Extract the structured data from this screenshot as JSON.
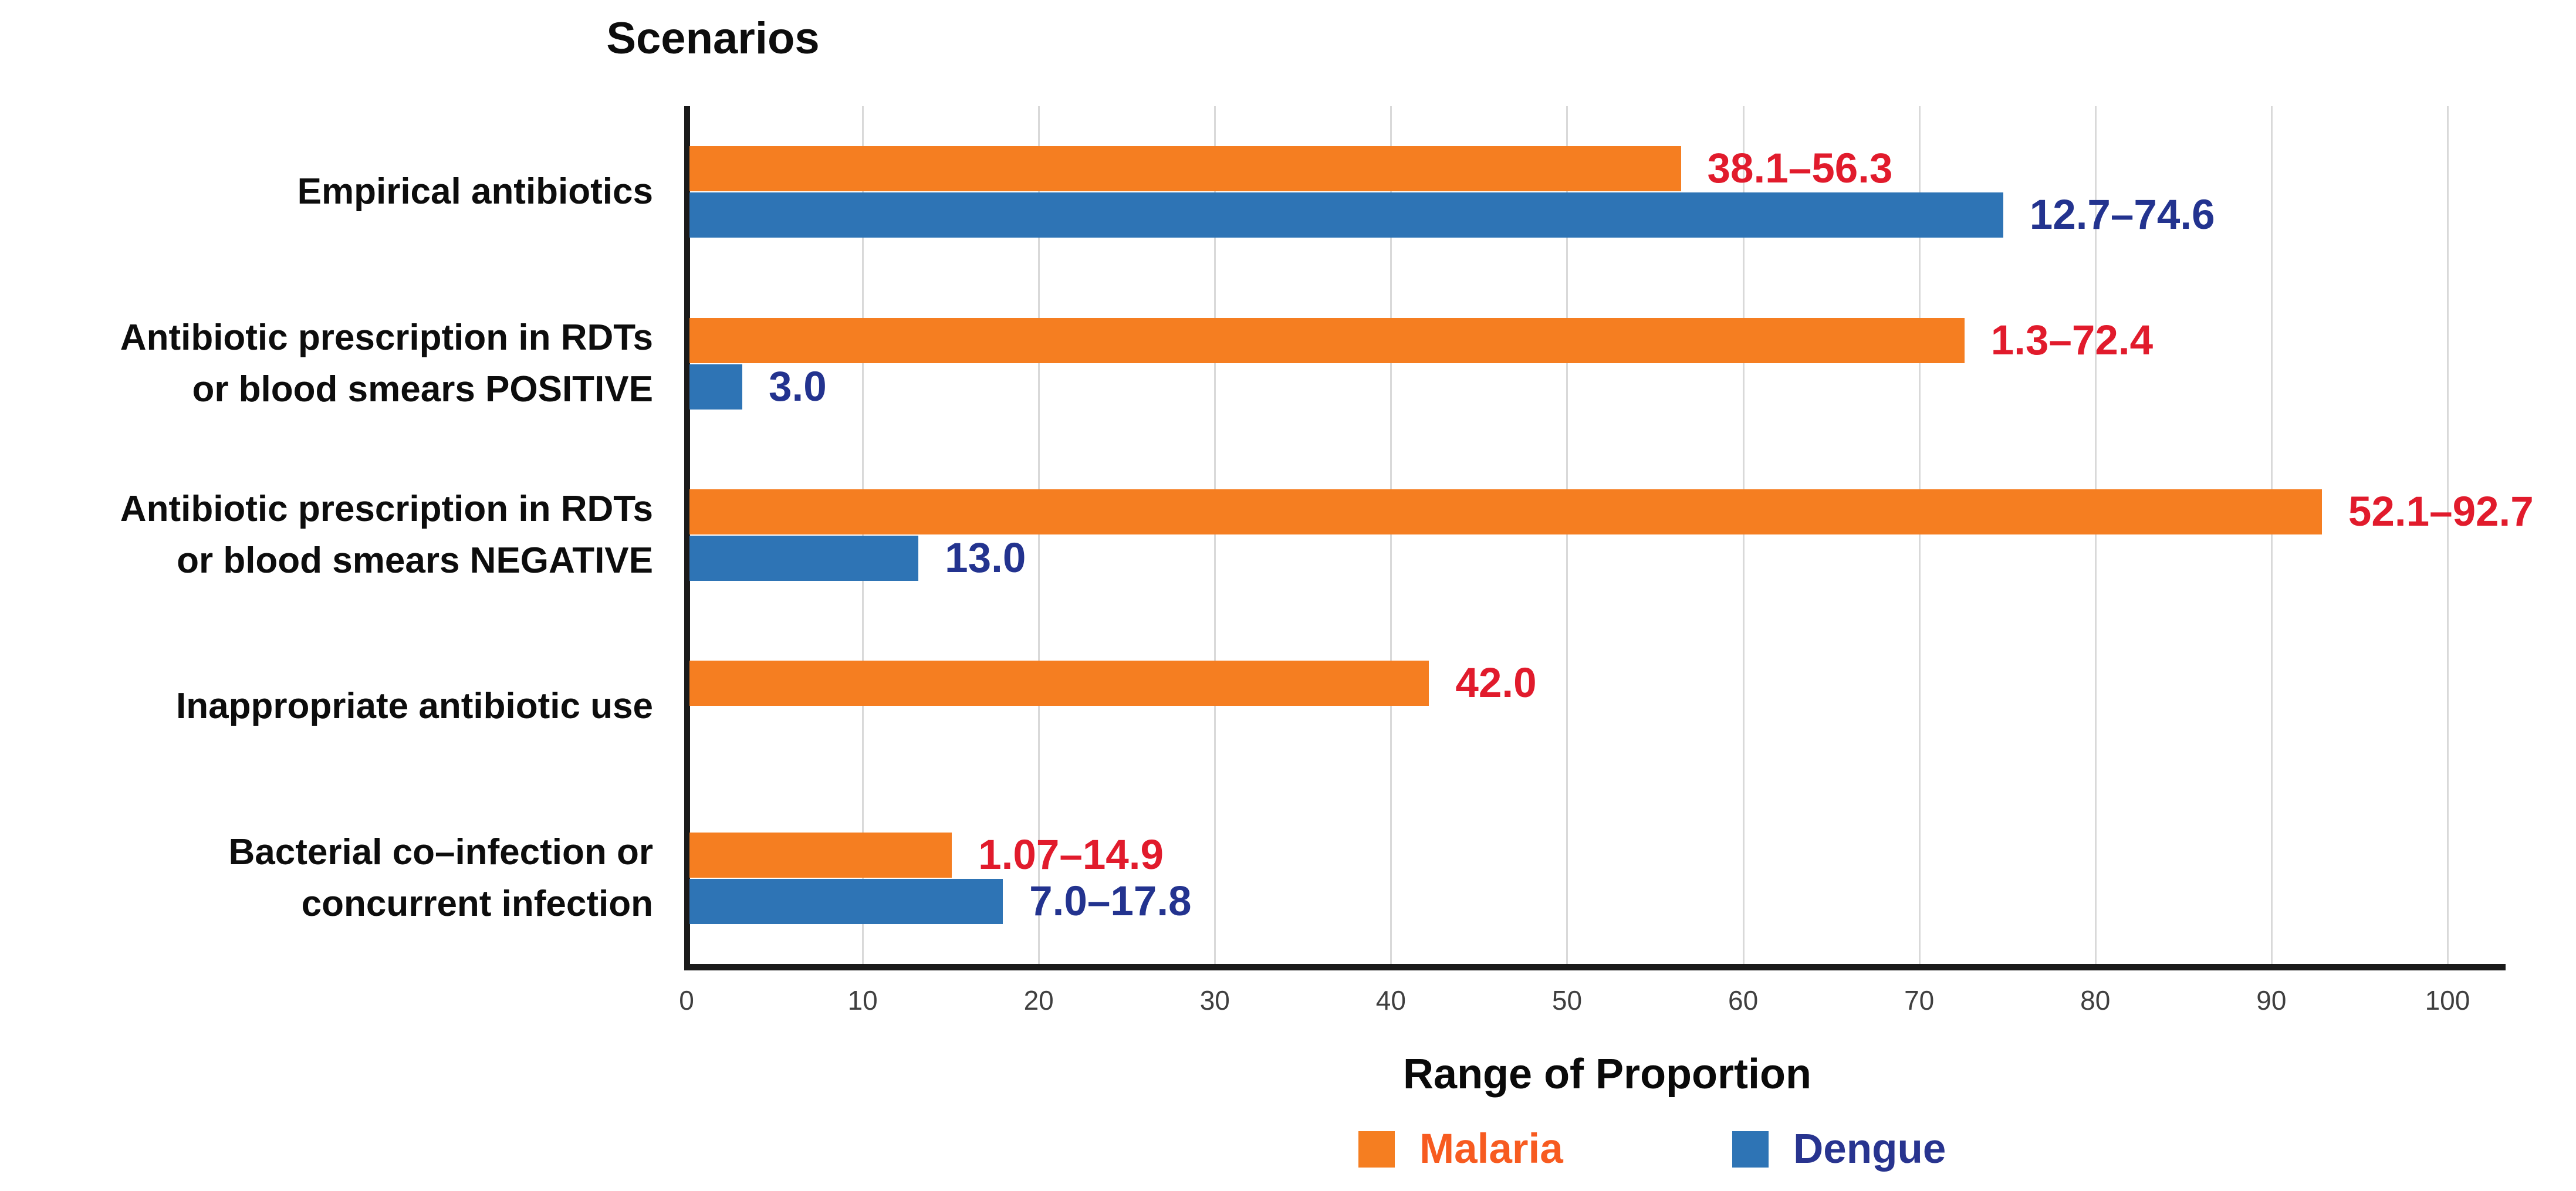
{
  "title": "Scenarios",
  "axis": {
    "x_title": "Range of Proportion",
    "ticks": [
      0,
      10,
      20,
      30,
      40,
      50,
      60,
      70,
      80,
      90,
      100
    ],
    "xmax": 103.3
  },
  "legend": [
    {
      "name": "Malaria",
      "swatch_color": "#F57E21",
      "text_color": "#F75B20"
    },
    {
      "name": "Dengue",
      "swatch_color": "#2E74B5",
      "text_color": "#28348F"
    }
  ],
  "colors": {
    "malaria_bar": "#F57E21",
    "dengue_bar": "#2E74B5",
    "malaria_value_label": "#E11B2C",
    "dengue_value_label": "#23338F",
    "axis_line": "#1a1a1a",
    "gridline": "#d9d9d9"
  },
  "chart_data": {
    "type": "bar",
    "orientation": "horizontal",
    "title": "Scenarios",
    "xlabel": "Range of Proportion",
    "ylabel": "Scenarios",
    "xlim": [
      0,
      103.3
    ],
    "grid": true,
    "legend_position": "bottom",
    "categories": [
      [
        "Empirical antibiotics"
      ],
      [
        "Antibiotic prescription in RDTs",
        "or blood smears POSITIVE"
      ],
      [
        "Antibiotic prescription in RDTs",
        "or blood smears NEGATIVE"
      ],
      [
        "Inappropriate antibiotic use"
      ],
      [
        "Bacterial co–infection or",
        "concurrent infection"
      ]
    ],
    "series": [
      {
        "name": "Malaria",
        "color": "#F57E21",
        "label_color": "#E11B2C",
        "values": [
          56.3,
          72.4,
          92.7,
          42.0,
          14.9
        ],
        "labels": [
          "38.1–56.3",
          "1.3–72.4",
          "52.1–92.7",
          "42.0",
          "1.07–14.9"
        ]
      },
      {
        "name": "Dengue",
        "color": "#2E74B5",
        "label_color": "#23338F",
        "values": [
          74.6,
          3.0,
          13.0,
          null,
          17.8
        ],
        "labels": [
          "12.7–74.6",
          "3.0",
          "13.0",
          null,
          "7.0–17.8"
        ]
      }
    ]
  }
}
